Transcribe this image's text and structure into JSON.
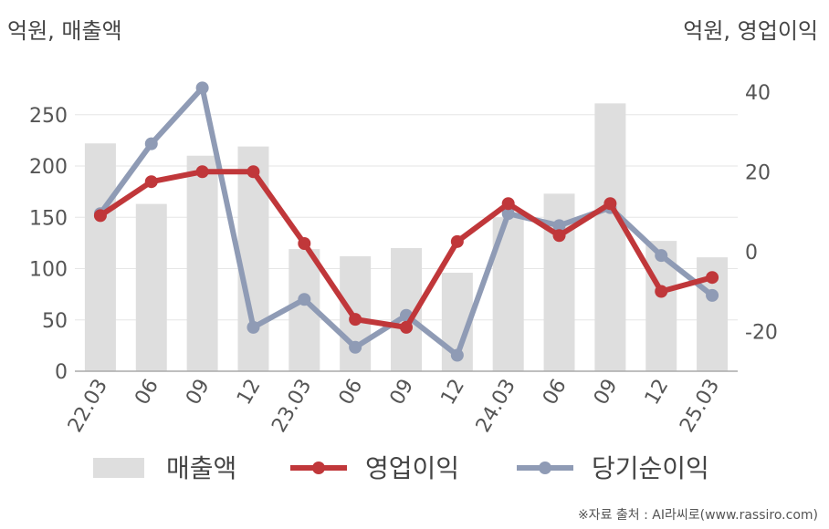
{
  "units": {
    "left": "억원, 매출액",
    "right": "억원, 영업이익"
  },
  "source": "※자료 출처 : AI라씨로(www.rassiro.com)",
  "colors": {
    "revenue": "#dedede",
    "operating_profit": "#c0373a",
    "net_profit": "#8f9bb5",
    "grid": "#e6e6e6",
    "axis": "#aaaaaa"
  },
  "chart_data": {
    "type": "bar+line",
    "categories": [
      "22.03",
      "06",
      "09",
      "12",
      "23.03",
      "06",
      "09",
      "12",
      "24.03",
      "06",
      "09",
      "12",
      "25.03"
    ],
    "series": [
      {
        "name": "매출액",
        "type": "bar",
        "axis": "left",
        "values": [
          222,
          163,
          210,
          219,
          119,
          112,
          120,
          96,
          150,
          173,
          261,
          127,
          111
        ]
      },
      {
        "name": "영업이익",
        "type": "line",
        "axis": "right",
        "values": [
          9,
          17.5,
          20,
          20,
          2,
          -17,
          -19,
          2.5,
          12,
          4,
          12,
          -10,
          -6.5
        ]
      },
      {
        "name": "당기순이익",
        "type": "line",
        "axis": "right",
        "values": [
          9.5,
          27,
          41,
          -19,
          -12,
          -24,
          -16,
          -26,
          9.5,
          6.5,
          11,
          -1,
          -11
        ]
      }
    ],
    "y_left": {
      "ticks": [
        0,
        50,
        100,
        150,
        200,
        250
      ],
      "range": [
        0,
        280
      ]
    },
    "y_right": {
      "ticks": [
        -20,
        0,
        20,
        40
      ],
      "range": [
        -30,
        42
      ]
    },
    "legend": {
      "position": "bottom",
      "items": [
        "매출액",
        "영업이익",
        "당기순이익"
      ]
    },
    "grid": true
  }
}
